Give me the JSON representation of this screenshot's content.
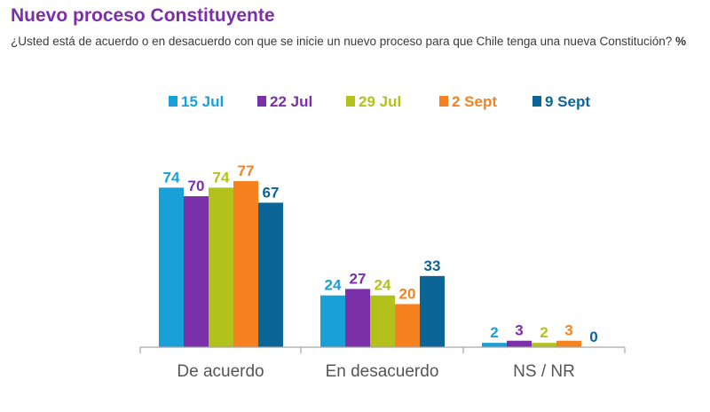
{
  "title": "Nuevo proceso Constituyente",
  "subtitle": "¿Usted está de acuerdo o en desacuerdo con que se inicie un nuevo proceso para que Chile tenga una nueva Constitución?",
  "unit": "%",
  "chart_data": {
    "type": "bar",
    "title": "Nuevo proceso Constituyente",
    "subtitle": "¿Usted está de acuerdo o en desacuerdo con que se inicie un nuevo proceso para que Chile tenga una nueva Constitución? %",
    "categories": [
      "De acuerdo",
      "En desacuerdo",
      "NS / NR"
    ],
    "series": [
      {
        "name": "15 Jul",
        "color": "#1aa0d8",
        "values": [
          74,
          24,
          2
        ]
      },
      {
        "name": "22 Jul",
        "color": "#7b2fa8",
        "values": [
          70,
          27,
          3
        ]
      },
      {
        "name": "29 Jul",
        "color": "#b3c21a",
        "values": [
          74,
          24,
          2
        ]
      },
      {
        "name": "2 Sept",
        "color": "#f5821f",
        "values": [
          77,
          20,
          3
        ]
      },
      {
        "name": "9 Sept",
        "color": "#0c6597",
        "values": [
          67,
          33,
          0
        ]
      }
    ],
    "xlabel": "",
    "ylabel": "%",
    "ylim": [
      0,
      77
    ],
    "legend_position": "top",
    "grid": false,
    "data_labels": true
  }
}
